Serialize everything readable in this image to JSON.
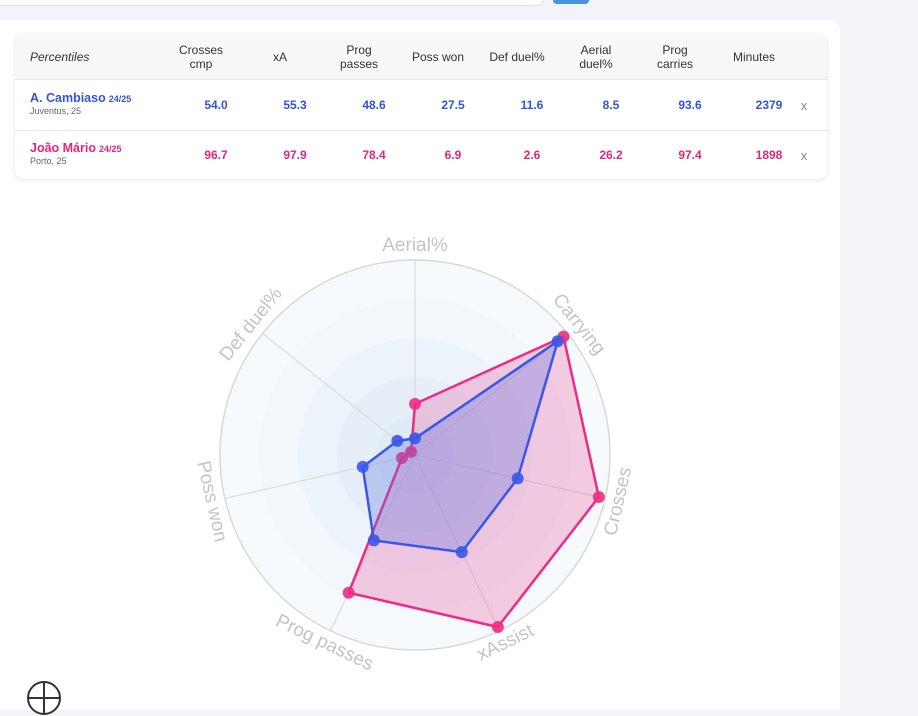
{
  "table": {
    "headers": [
      "Percentiles",
      "Crosses\ncmp",
      "xA",
      "Prog\npasses",
      "Poss won",
      "Def duel%",
      "Aerial\nduel%",
      "Prog\ncarries",
      "Minutes"
    ],
    "players": [
      {
        "name": "A. Cambiaso",
        "season": "24/25",
        "info": "Juventus, 25",
        "color": "#3652d9",
        "values": [
          "54.0",
          "55.3",
          "48.6",
          "27.5",
          "11.6",
          "8.5",
          "93.6",
          "2379"
        ],
        "remove_label": "x"
      },
      {
        "name": "João Mário",
        "season": "24/25",
        "info": "Porto, 25",
        "color": "#e0267d",
        "values": [
          "96.7",
          "97.9",
          "78.4",
          "6.9",
          "2.6",
          "26.2",
          "97.4",
          "1898"
        ],
        "remove_label": "x"
      }
    ]
  },
  "radar": {
    "axes": [
      "Aerial%",
      "Carrying",
      "Crosses",
      "xAssist",
      "Prog passes",
      "Poss won",
      "Def duel%"
    ],
    "max": 100,
    "series": [
      {
        "player": "A. Cambiaso",
        "color": "#3a57e8",
        "fill": "#5a6fe0",
        "values": [
          8.5,
          93.6,
          54.0,
          55.3,
          48.6,
          27.5,
          11.6
        ]
      },
      {
        "player": "João Mário",
        "color": "#ec2d84",
        "fill": "#ec5fa3",
        "values": [
          26.2,
          97.4,
          96.7,
          97.9,
          78.4,
          6.9,
          2.6
        ]
      }
    ]
  },
  "icons": {
    "bottom": "basketball-icon"
  }
}
